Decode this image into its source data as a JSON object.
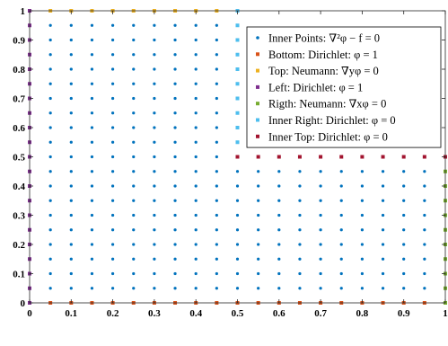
{
  "chart_data": {
    "type": "scatter",
    "xlim": [
      0,
      1
    ],
    "ylim": [
      0,
      1
    ],
    "grid": false,
    "legend_position": "top-right",
    "x_ticks": [
      "0",
      "0.1",
      "0.2",
      "0.3",
      "0.4",
      "0.5",
      "0.6",
      "0.7",
      "0.8",
      "0.9",
      "1"
    ],
    "y_ticks": [
      "0",
      "0.1",
      "0.2",
      "0.3",
      "0.4",
      "0.5",
      "0.6",
      "0.7",
      "0.8",
      "0.9",
      "1"
    ],
    "series": [
      {
        "name": "Inner Points: ∇²φ − f = 0",
        "color": "#0072BD",
        "marker": "dot",
        "regions": [
          {
            "x_from": 0.05,
            "x_to": 0.95,
            "y_from": 0.05,
            "y_to": 0.45,
            "step": 0.05
          },
          {
            "x_from": 0.05,
            "x_to": 0.45,
            "y_from": 0.5,
            "y_to": 0.95,
            "step": 0.05
          }
        ]
      },
      {
        "name": "Bottom: Dirichlet: φ = 1",
        "color": "#D95319",
        "marker": "square",
        "x_from": 0.05,
        "x_to": 0.95,
        "step": 0.05,
        "y": 0
      },
      {
        "name": "Top: Neumann: ∇yφ = 0",
        "color": "#EDB120",
        "marker": "square",
        "x_from": 0.05,
        "x_to": 0.45,
        "step": 0.05,
        "y": 1
      },
      {
        "name": "Left: Dirichlet: φ = 1",
        "color": "#7E2F8E",
        "marker": "square",
        "x": 0,
        "y_from": 0,
        "y_to": 1,
        "step": 0.05
      },
      {
        "name": "Rigth: Neumann: ∇xφ = 0",
        "color": "#77AC30",
        "marker": "square",
        "x": 1,
        "y_from": 0,
        "y_to": 0.5,
        "step": 0.05
      },
      {
        "name": "Inner Right: Dirichlet: φ = 0",
        "color": "#4DBEEE",
        "marker": "square",
        "x": 0.5,
        "y_from": 0.5,
        "y_to": 1,
        "step": 0.05
      },
      {
        "name": "Inner Top: Dirichlet: φ = 0",
        "color": "#A2142F",
        "marker": "square",
        "x_from": 0.5,
        "x_to": 1,
        "step": 0.05,
        "y": 0.5
      }
    ]
  }
}
